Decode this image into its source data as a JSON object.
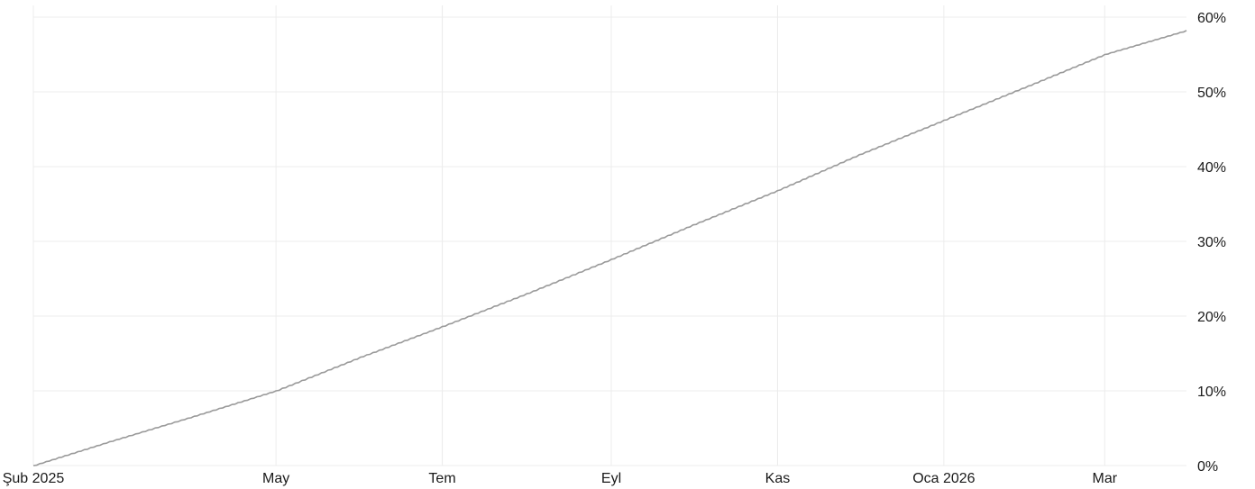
{
  "chart_data": {
    "type": "line",
    "title": "",
    "xlabel": "",
    "ylabel": "",
    "x_axis": {
      "type": "date",
      "range": [
        "2025-02-01",
        "2026-03-31"
      ],
      "ticks": [
        {
          "date": "2025-02-01",
          "label": "Şub 2025"
        },
        {
          "date": "2025-05-01",
          "label": "May"
        },
        {
          "date": "2025-07-01",
          "label": "Tem"
        },
        {
          "date": "2025-09-01",
          "label": "Eyl"
        },
        {
          "date": "2025-11-01",
          "label": "Kas"
        },
        {
          "date": "2026-01-01",
          "label": "Oca 2026"
        },
        {
          "date": "2026-03-01",
          "label": "Mar"
        }
      ]
    },
    "y_axis": {
      "position": "right",
      "unit": "%",
      "range": [
        0,
        60
      ],
      "ticks": [
        0,
        10,
        20,
        30,
        40,
        50,
        60
      ],
      "tick_labels": [
        "0%",
        "10%",
        "20%",
        "30%",
        "40%",
        "50%",
        "60%"
      ]
    },
    "grid": true,
    "legend": "none",
    "series": [
      {
        "color": "#9a9a9a",
        "points": [
          {
            "x": "2025-02-01",
            "y": 0.0
          },
          {
            "x": "2025-03-01",
            "y": 3.2
          },
          {
            "x": "2025-04-01",
            "y": 6.6
          },
          {
            "x": "2025-05-01",
            "y": 10.0
          },
          {
            "x": "2025-06-01",
            "y": 14.5
          },
          {
            "x": "2025-07-01",
            "y": 18.6
          },
          {
            "x": "2025-08-01",
            "y": 23.0
          },
          {
            "x": "2025-09-01",
            "y": 27.6
          },
          {
            "x": "2025-10-01",
            "y": 32.2
          },
          {
            "x": "2025-11-01",
            "y": 36.8
          },
          {
            "x": "2025-12-01",
            "y": 41.6
          },
          {
            "x": "2026-01-01",
            "y": 46.2
          },
          {
            "x": "2026-02-01",
            "y": 50.8
          },
          {
            "x": "2026-03-01",
            "y": 55.0
          },
          {
            "x": "2026-03-31",
            "y": 58.2
          }
        ]
      }
    ]
  }
}
